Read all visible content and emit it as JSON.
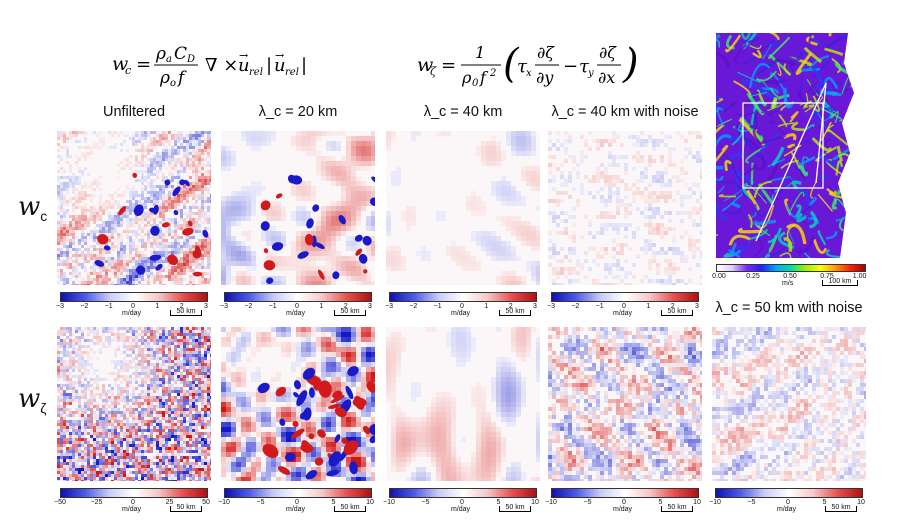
{
  "equations": {
    "wc": "w_c = ρ_a C_D / (ρ_o f) ∇ × u_rel |u_rel|",
    "wzeta": "w_ζ = 1/(ρ_0 f²) ( τ_x ∂ζ/∂y − τ_y ∂ζ/∂x )"
  },
  "columns": {
    "c1": "Unfiltered",
    "c2": "λ_c = 20 km",
    "c3": "λ_c = 40 km",
    "c4": "λ_c = 40 km with noise",
    "c5": "λ_c = 50 km with noise"
  },
  "rows": {
    "r1": {
      "main": "w",
      "sub": "c"
    },
    "r2": {
      "main": "w",
      "sub": "ζ"
    }
  },
  "colorbars": {
    "unit": "m/day",
    "scale_label": "50 km",
    "row1_ticks": [
      "−3",
      "−2",
      "−1",
      "0",
      "1",
      "2",
      "3"
    ],
    "row2_unfiltered_ticks": [
      "−50",
      "−25",
      "0",
      "25",
      "50"
    ],
    "row2_filtered_ticks": [
      "−10",
      "−5",
      "0",
      "5",
      "10"
    ]
  },
  "map": {
    "unit": "m/s",
    "scale_label": "100 km",
    "ticks": [
      "0.00",
      "0.25",
      "0.50",
      "0.75",
      "1.00"
    ]
  },
  "colors": {
    "negative": "#1f1fd6",
    "positive": "#d61f1f",
    "neutral": "#ffffff"
  }
}
